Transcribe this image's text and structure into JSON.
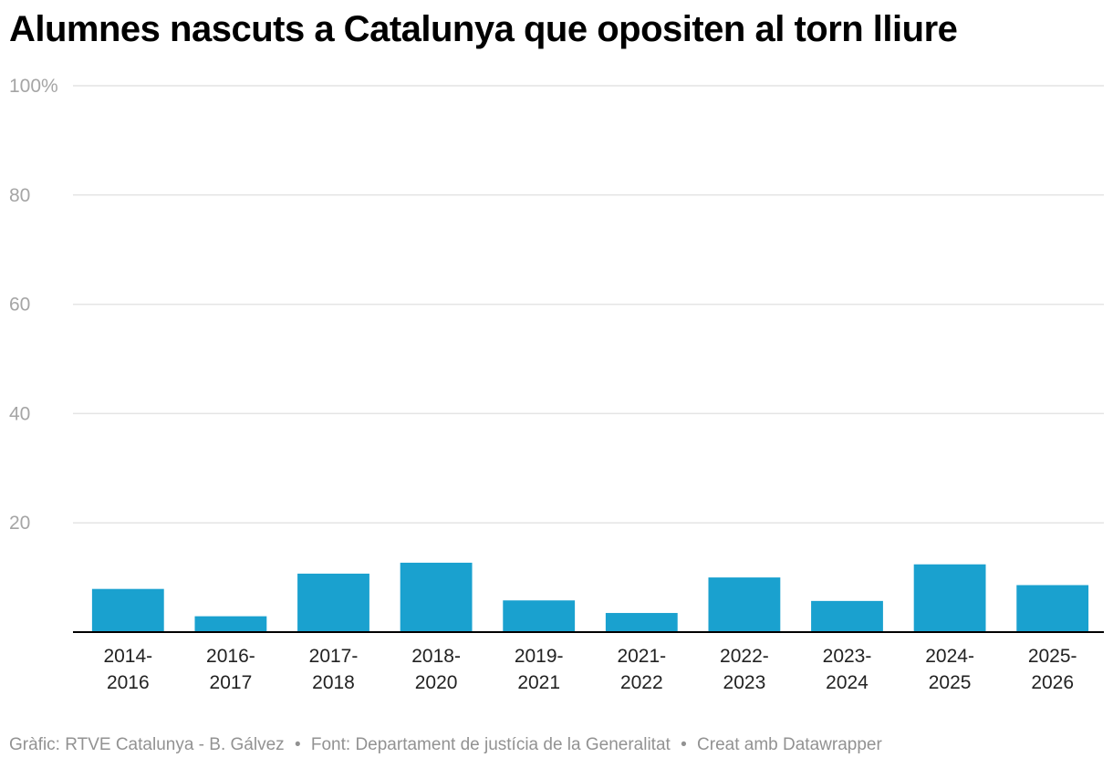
{
  "title": "Alumnes nascuts a Catalunya que opositen al torn lliure",
  "colors": {
    "bar": "#1aa1cf",
    "grid": "#e4e4e4",
    "axis": "#000000",
    "ytick": "#a5a5a5",
    "xtick": "#222222"
  },
  "chart_data": {
    "type": "bar",
    "categories": [
      [
        "2014-",
        "2016"
      ],
      [
        "2016-",
        "2017"
      ],
      [
        "2017-",
        "2018"
      ],
      [
        "2018-",
        "2020"
      ],
      [
        "2019-",
        "2021"
      ],
      [
        "2021-",
        "2022"
      ],
      [
        "2022-",
        "2023"
      ],
      [
        "2023-",
        "2024"
      ],
      [
        "2024-",
        "2025"
      ],
      [
        "2025-",
        "2026"
      ]
    ],
    "values": [
      7.9,
      2.9,
      10.7,
      12.7,
      5.8,
      3.5,
      10.0,
      5.7,
      12.4,
      8.6
    ],
    "ylim": [
      0,
      100
    ],
    "yticks": [
      {
        "value": 100,
        "label": "100%"
      },
      {
        "value": 80,
        "label": "80"
      },
      {
        "value": 60,
        "label": "60"
      },
      {
        "value": 40,
        "label": "40"
      },
      {
        "value": 20,
        "label": "20"
      }
    ],
    "xlabel": "",
    "ylabel": "",
    "grid": true
  },
  "footer": {
    "credit": "Gràfic: RTVE Catalunya - B. Gálvez",
    "separator": "•",
    "source": "Font: Departament de justícia de la Generalitat",
    "tool": "Creat amb Datawrapper"
  }
}
